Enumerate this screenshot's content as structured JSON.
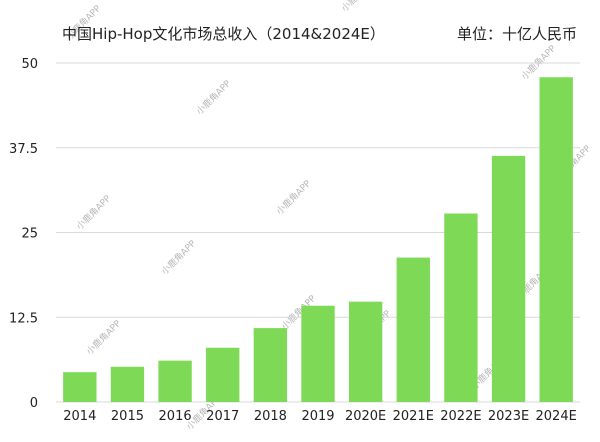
{
  "chart_data": {
    "type": "bar",
    "title": "中国Hip-Hop文化市场总收入（2014&2024E）",
    "unit_label": "单位：十亿人民币",
    "categories": [
      "2014",
      "2015",
      "2016",
      "2017",
      "2018",
      "2019",
      "2020E",
      "2021E",
      "2022E",
      "2023E",
      "2024E"
    ],
    "values": [
      4.4,
      5.2,
      6.1,
      8.0,
      10.9,
      14.2,
      14.8,
      21.3,
      27.8,
      36.3,
      47.9
    ],
    "ylim": [
      0,
      50
    ],
    "yticks": [
      "0",
      "12.5",
      "25",
      "37.5",
      "50"
    ],
    "ytick_values": [
      0,
      12.5,
      25,
      37.5,
      50
    ],
    "grid": true,
    "bar_color": "#7ed957",
    "grid_color": "#d9d9d9"
  },
  "watermark": {
    "text": "小鹿角APP"
  }
}
